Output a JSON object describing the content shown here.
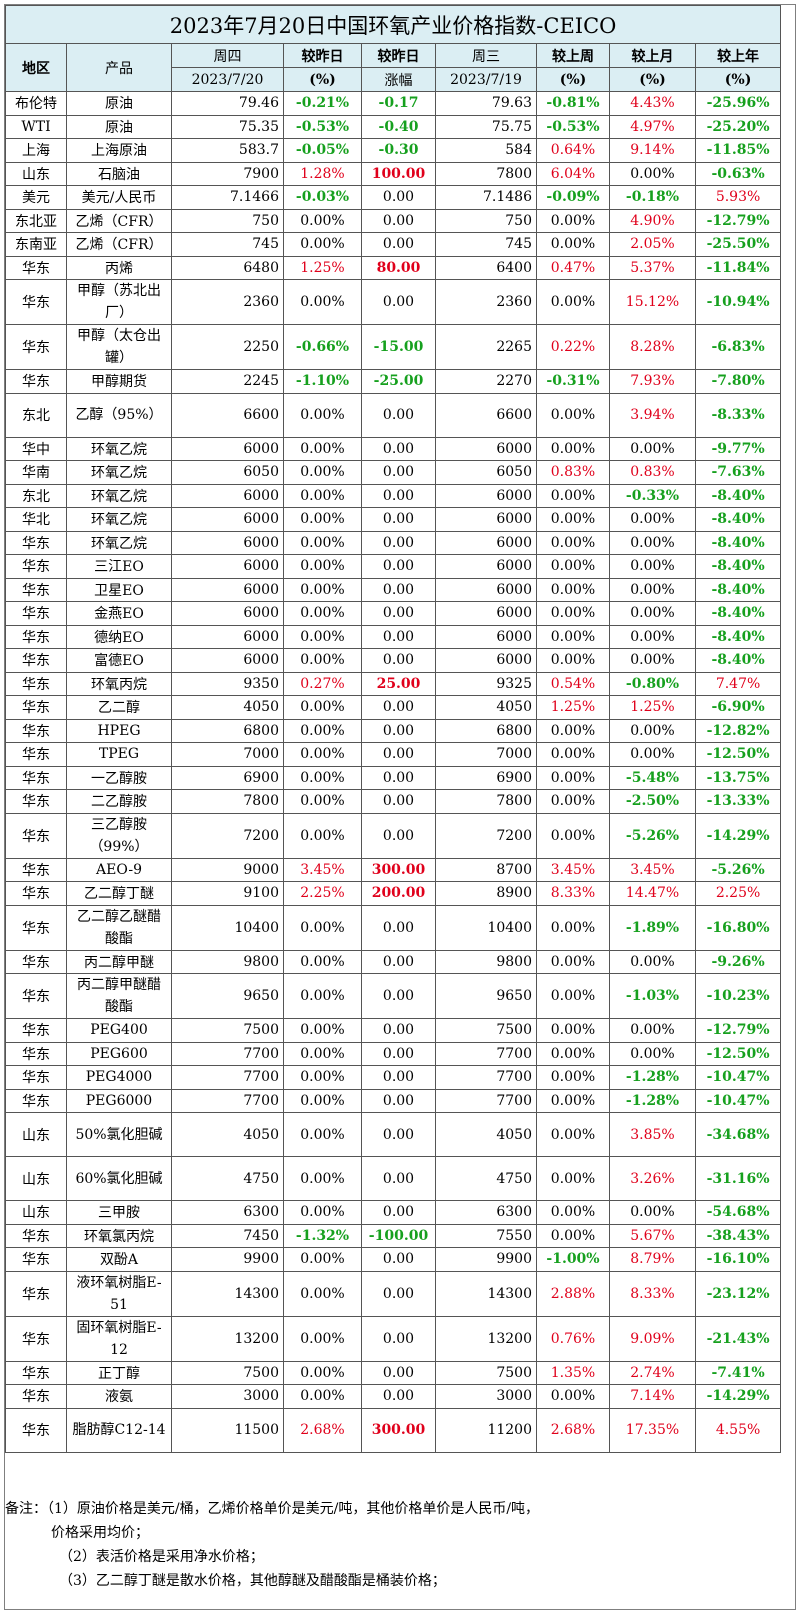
{
  "title": "2023年7月20日中国环氧产业价格指数-CEICO",
  "headers": {
    "region": "地区",
    "product": "产品",
    "thu": "周四",
    "thu_date": "2023/7/20",
    "vs_yday": "较昨日",
    "pct": "(%)",
    "vs_yday2": "较昨日",
    "change": "涨幅",
    "wed": "周三",
    "wed_date": "2023/7/19",
    "vs_week": "较上周",
    "vs_month": "较上月",
    "vs_year": "较上年",
    "pct_w": "(%)",
    "pct_m": "(%)",
    "pct_y": "(%)"
  },
  "rows": [
    {
      "region": "布伦特",
      "product": "原油",
      "thu": "79.46",
      "dpct": "-0.21%",
      "dval": "-0.17",
      "wed": "79.63",
      "wk": "-0.81%",
      "mo": "4.43%",
      "yr": "-25.96%"
    },
    {
      "region": "WTI",
      "product": "原油",
      "thu": "75.35",
      "dpct": "-0.53%",
      "dval": "-0.40",
      "wed": "75.75",
      "wk": "-0.53%",
      "mo": "4.97%",
      "yr": "-25.20%"
    },
    {
      "region": "上海",
      "product": "上海原油",
      "thu": "583.7",
      "dpct": "-0.05%",
      "dval": "-0.30",
      "wed": "584",
      "wk": "0.64%",
      "mo": "9.14%",
      "yr": "-11.85%"
    },
    {
      "region": "山东",
      "product": "石脑油",
      "thu": "7900",
      "dpct": "1.28%",
      "dval": "100.00",
      "wed": "7800",
      "wk": "6.04%",
      "mo": "0.00%",
      "yr": "-0.63%"
    },
    {
      "region": "美元",
      "product": "美元/人民币",
      "thu": "7.1466",
      "dpct": "-0.03%",
      "dval": "0.00",
      "wed": "7.1486",
      "wk": "-0.09%",
      "mo": "-0.18%",
      "yr": "5.93%"
    },
    {
      "region": "东北亚",
      "product": "乙烯（CFR）",
      "thu": "750",
      "dpct": "0.00%",
      "dval": "0.00",
      "wed": "750",
      "wk": "0.00%",
      "mo": "4.90%",
      "yr": "-12.79%"
    },
    {
      "region": "东南亚",
      "product": "乙烯（CFR）",
      "thu": "745",
      "dpct": "0.00%",
      "dval": "0.00",
      "wed": "745",
      "wk": "0.00%",
      "mo": "2.05%",
      "yr": "-25.50%"
    },
    {
      "region": "华东",
      "product": "丙烯",
      "thu": "6480",
      "dpct": "1.25%",
      "dval": "80.00",
      "wed": "6400",
      "wk": "0.47%",
      "mo": "5.37%",
      "yr": "-11.84%"
    },
    {
      "region": "华东",
      "product": "甲醇（苏北出厂）",
      "thu": "2360",
      "dpct": "0.00%",
      "dval": "0.00",
      "wed": "2360",
      "wk": "0.00%",
      "mo": "15.12%",
      "yr": "-10.94%"
    },
    {
      "region": "华东",
      "product": "甲醇（太仓出罐）",
      "thu": "2250",
      "dpct": "-0.66%",
      "dval": "-15.00",
      "wed": "2265",
      "wk": "0.22%",
      "mo": "8.28%",
      "yr": "-6.83%"
    },
    {
      "region": "华东",
      "product": "甲醇期货",
      "thu": "2245",
      "dpct": "-1.10%",
      "dval": "-25.00",
      "wed": "2270",
      "wk": "-0.31%",
      "mo": "7.93%",
      "yr": "-7.80%"
    },
    {
      "region": "东北",
      "product": "乙醇（95%）",
      "thu": "6600",
      "dpct": "0.00%",
      "dval": "0.00",
      "wed": "6600",
      "wk": "0.00%",
      "mo": "3.94%",
      "yr": "-8.33%"
    },
    {
      "region": "华中",
      "product": "环氧乙烷",
      "thu": "6000",
      "dpct": "0.00%",
      "dval": "0.00",
      "wed": "6000",
      "wk": "0.00%",
      "mo": "0.00%",
      "yr": "-9.77%"
    },
    {
      "region": "华南",
      "product": "环氧乙烷",
      "thu": "6050",
      "dpct": "0.00%",
      "dval": "0.00",
      "wed": "6050",
      "wk": "0.83%",
      "mo": "0.83%",
      "yr": "-7.63%"
    },
    {
      "region": "东北",
      "product": "环氧乙烷",
      "thu": "6000",
      "dpct": "0.00%",
      "dval": "0.00",
      "wed": "6000",
      "wk": "0.00%",
      "mo": "-0.33%",
      "yr": "-8.40%"
    },
    {
      "region": "华北",
      "product": "环氧乙烷",
      "thu": "6000",
      "dpct": "0.00%",
      "dval": "0.00",
      "wed": "6000",
      "wk": "0.00%",
      "mo": "0.00%",
      "yr": "-8.40%"
    },
    {
      "region": "华东",
      "product": "环氧乙烷",
      "thu": "6000",
      "dpct": "0.00%",
      "dval": "0.00",
      "wed": "6000",
      "wk": "0.00%",
      "mo": "0.00%",
      "yr": "-8.40%"
    },
    {
      "region": "华东",
      "product": "三江EO",
      "thu": "6000",
      "dpct": "0.00%",
      "dval": "0.00",
      "wed": "6000",
      "wk": "0.00%",
      "mo": "0.00%",
      "yr": "-8.40%"
    },
    {
      "region": "华东",
      "product": "卫星EO",
      "thu": "6000",
      "dpct": "0.00%",
      "dval": "0.00",
      "wed": "6000",
      "wk": "0.00%",
      "mo": "0.00%",
      "yr": "-8.40%"
    },
    {
      "region": "华东",
      "product": "金燕EO",
      "thu": "6000",
      "dpct": "0.00%",
      "dval": "0.00",
      "wed": "6000",
      "wk": "0.00%",
      "mo": "0.00%",
      "yr": "-8.40%"
    },
    {
      "region": "华东",
      "product": "德纳EO",
      "thu": "6000",
      "dpct": "0.00%",
      "dval": "0.00",
      "wed": "6000",
      "wk": "0.00%",
      "mo": "0.00%",
      "yr": "-8.40%"
    },
    {
      "region": "华东",
      "product": "富德EO",
      "thu": "6000",
      "dpct": "0.00%",
      "dval": "0.00",
      "wed": "6000",
      "wk": "0.00%",
      "mo": "0.00%",
      "yr": "-8.40%"
    },
    {
      "region": "华东",
      "product": "环氧丙烷",
      "thu": "9350",
      "dpct": "0.27%",
      "dval": "25.00",
      "wed": "9325",
      "wk": "0.54%",
      "mo": "-0.80%",
      "yr": "7.47%"
    },
    {
      "region": "华东",
      "product": "乙二醇",
      "thu": "4050",
      "dpct": "0.00%",
      "dval": "0.00",
      "wed": "4050",
      "wk": "1.25%",
      "mo": "1.25%",
      "yr": "-6.90%"
    },
    {
      "region": "华东",
      "product": "HPEG",
      "thu": "6800",
      "dpct": "0.00%",
      "dval": "0.00",
      "wed": "6800",
      "wk": "0.00%",
      "mo": "0.00%",
      "yr": "-12.82%"
    },
    {
      "region": "华东",
      "product": "TPEG",
      "thu": "7000",
      "dpct": "0.00%",
      "dval": "0.00",
      "wed": "7000",
      "wk": "0.00%",
      "mo": "0.00%",
      "yr": "-12.50%"
    },
    {
      "region": "华东",
      "product": "一乙醇胺",
      "thu": "6900",
      "dpct": "0.00%",
      "dval": "0.00",
      "wed": "6900",
      "wk": "0.00%",
      "mo": "-5.48%",
      "yr": "-13.75%"
    },
    {
      "region": "华东",
      "product": "二乙醇胺",
      "thu": "7800",
      "dpct": "0.00%",
      "dval": "0.00",
      "wed": "7800",
      "wk": "0.00%",
      "mo": "-2.50%",
      "yr": "-13.33%"
    },
    {
      "region": "华东",
      "product": "三乙醇胺（99%）",
      "thu": "7200",
      "dpct": "0.00%",
      "dval": "0.00",
      "wed": "7200",
      "wk": "0.00%",
      "mo": "-5.26%",
      "yr": "-14.29%"
    },
    {
      "region": "华东",
      "product": "AEO-9",
      "thu": "9000",
      "dpct": "3.45%",
      "dval": "300.00",
      "wed": "8700",
      "wk": "3.45%",
      "mo": "3.45%",
      "yr": "-5.26%"
    },
    {
      "region": "华东",
      "product": "乙二醇丁醚",
      "thu": "9100",
      "dpct": "2.25%",
      "dval": "200.00",
      "wed": "8900",
      "wk": "8.33%",
      "mo": "14.47%",
      "yr": "2.25%"
    },
    {
      "region": "华东",
      "product": "乙二醇乙醚醋酸酯",
      "thu": "10400",
      "dpct": "0.00%",
      "dval": "0.00",
      "wed": "10400",
      "wk": "0.00%",
      "mo": "-1.89%",
      "yr": "-16.80%"
    },
    {
      "region": "华东",
      "product": "丙二醇甲醚",
      "thu": "9800",
      "dpct": "0.00%",
      "dval": "0.00",
      "wed": "9800",
      "wk": "0.00%",
      "mo": "0.00%",
      "yr": "-9.26%"
    },
    {
      "region": "华东",
      "product": "丙二醇甲醚醋酸酯",
      "thu": "9650",
      "dpct": "0.00%",
      "dval": "0.00",
      "wed": "9650",
      "wk": "0.00%",
      "mo": "-1.03%",
      "yr": "-10.23%"
    },
    {
      "region": "华东",
      "product": "PEG400",
      "thu": "7500",
      "dpct": "0.00%",
      "dval": "0.00",
      "wed": "7500",
      "wk": "0.00%",
      "mo": "0.00%",
      "yr": "-12.79%"
    },
    {
      "region": "华东",
      "product": "PEG600",
      "thu": "7700",
      "dpct": "0.00%",
      "dval": "0.00",
      "wed": "7700",
      "wk": "0.00%",
      "mo": "0.00%",
      "yr": "-12.50%"
    },
    {
      "region": "华东",
      "product": "PEG4000",
      "thu": "7700",
      "dpct": "0.00%",
      "dval": "0.00",
      "wed": "7700",
      "wk": "0.00%",
      "mo": "-1.28%",
      "yr": "-10.47%"
    },
    {
      "region": "华东",
      "product": "PEG6000",
      "thu": "7700",
      "dpct": "0.00%",
      "dval": "0.00",
      "wed": "7700",
      "wk": "0.00%",
      "mo": "-1.28%",
      "yr": "-10.47%"
    },
    {
      "region": "山东",
      "product": "50%氯化胆碱",
      "thu": "4050",
      "dpct": "0.00%",
      "dval": "0.00",
      "wed": "4050",
      "wk": "0.00%",
      "mo": "3.85%",
      "yr": "-34.68%"
    },
    {
      "region": "山东",
      "product": "60%氯化胆碱",
      "thu": "4750",
      "dpct": "0.00%",
      "dval": "0.00",
      "wed": "4750",
      "wk": "0.00%",
      "mo": "3.26%",
      "yr": "-31.16%"
    },
    {
      "region": "山东",
      "product": "三甲胺",
      "thu": "6300",
      "dpct": "0.00%",
      "dval": "0.00",
      "wed": "6300",
      "wk": "0.00%",
      "mo": "0.00%",
      "yr": "-54.68%"
    },
    {
      "region": "华东",
      "product": "环氧氯丙烷",
      "thu": "7450",
      "dpct": "-1.32%",
      "dval": "-100.00",
      "wed": "7550",
      "wk": "0.00%",
      "mo": "5.67%",
      "yr": "-38.43%"
    },
    {
      "region": "华东",
      "product": "双酚A",
      "thu": "9900",
      "dpct": "0.00%",
      "dval": "0.00",
      "wed": "9900",
      "wk": "-1.00%",
      "mo": "8.79%",
      "yr": "-16.10%"
    },
    {
      "region": "华东",
      "product": "液环氧树脂E-51",
      "thu": "14300",
      "dpct": "0.00%",
      "dval": "0.00",
      "wed": "14300",
      "wk": "2.88%",
      "mo": "8.33%",
      "yr": "-23.12%"
    },
    {
      "region": "华东",
      "product": "固环氧树脂E-12",
      "thu": "13200",
      "dpct": "0.00%",
      "dval": "0.00",
      "wed": "13200",
      "wk": "0.76%",
      "mo": "9.09%",
      "yr": "-21.43%"
    },
    {
      "region": "华东",
      "product": "正丁醇",
      "thu": "7500",
      "dpct": "0.00%",
      "dval": "0.00",
      "wed": "7500",
      "wk": "1.35%",
      "mo": "2.74%",
      "yr": "-7.41%"
    },
    {
      "region": "华东",
      "product": "液氨",
      "thu": "3000",
      "dpct": "0.00%",
      "dval": "0.00",
      "wed": "3000",
      "wk": "0.00%",
      "mo": "7.14%",
      "yr": "-14.29%"
    },
    {
      "region": "华东",
      "product": "脂肪醇C12-14",
      "thu": "11500",
      "dpct": "2.68%",
      "dval": "300.00",
      "wed": "11200",
      "wk": "2.68%",
      "mo": "17.35%",
      "yr": "4.55%"
    }
  ],
  "notes": [
    "备注：（1）原油价格是美元/桶，乙烯价格单价是美元/吨，其他价格单价是人民币/吨，",
    "价格采用均价；",
    "（2）表活价格是采用净水价格；",
    "（3）乙二醇丁醚是散水价格，其他醇醚及醋酸酯是桶装价格；"
  ]
}
